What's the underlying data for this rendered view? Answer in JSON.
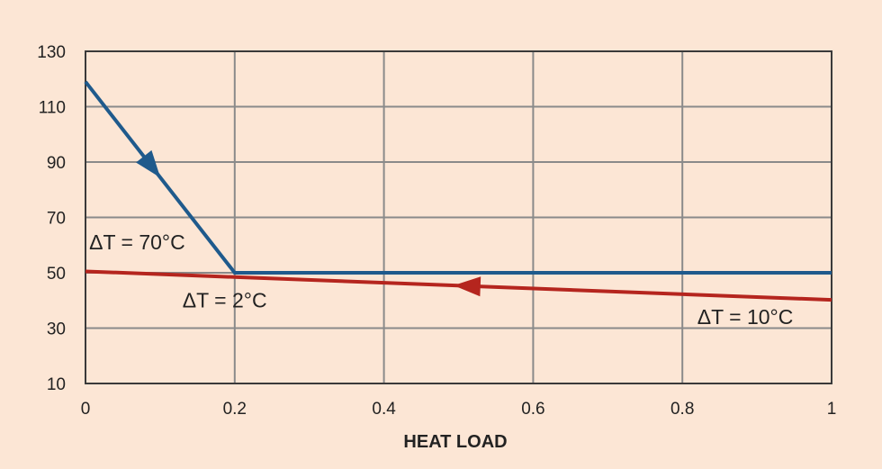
{
  "chart_data": {
    "type": "line",
    "title": "",
    "xlabel": "HEAT LOAD",
    "ylabel": "",
    "xlim": [
      0,
      1
    ],
    "ylim": [
      10,
      130
    ],
    "xticks": [
      0,
      0.2,
      0.4,
      0.6,
      0.8,
      1
    ],
    "yticks": [
      10,
      30,
      50,
      70,
      90,
      110,
      130
    ],
    "xtick_labels": [
      "0",
      "0.2",
      "0.4",
      "0.6",
      "0.8",
      "1"
    ],
    "ytick_labels": [
      "10",
      "30",
      "50",
      "70",
      "90",
      "110",
      "130"
    ],
    "grid": true,
    "series": [
      {
        "color": "#1f5a8c",
        "x": [
          0,
          0.2,
          1
        ],
        "y": [
          119,
          50,
          50
        ],
        "arrow_at_x": 0.09,
        "arrow_direction": "increasing-x"
      },
      {
        "color": "#b5251e",
        "x": [
          0,
          1
        ],
        "y": [
          50.5,
          40.2
        ],
        "arrow_at_x": 0.51,
        "arrow_direction": "decreasing-x"
      }
    ],
    "annotations": [
      {
        "text": "ΔT = 70°C",
        "x": 0.005,
        "y": 58.5
      },
      {
        "text": "ΔT = 2°C",
        "x": 0.13,
        "y": 37.5
      },
      {
        "text": "ΔT = 10°C",
        "x": 0.82,
        "y": 31.5
      }
    ]
  },
  "colors": {
    "background": "#fce6d5",
    "plot_background": "#fce6d5",
    "grid": "#8a8a8a",
    "frame": "#3a3a3a"
  }
}
